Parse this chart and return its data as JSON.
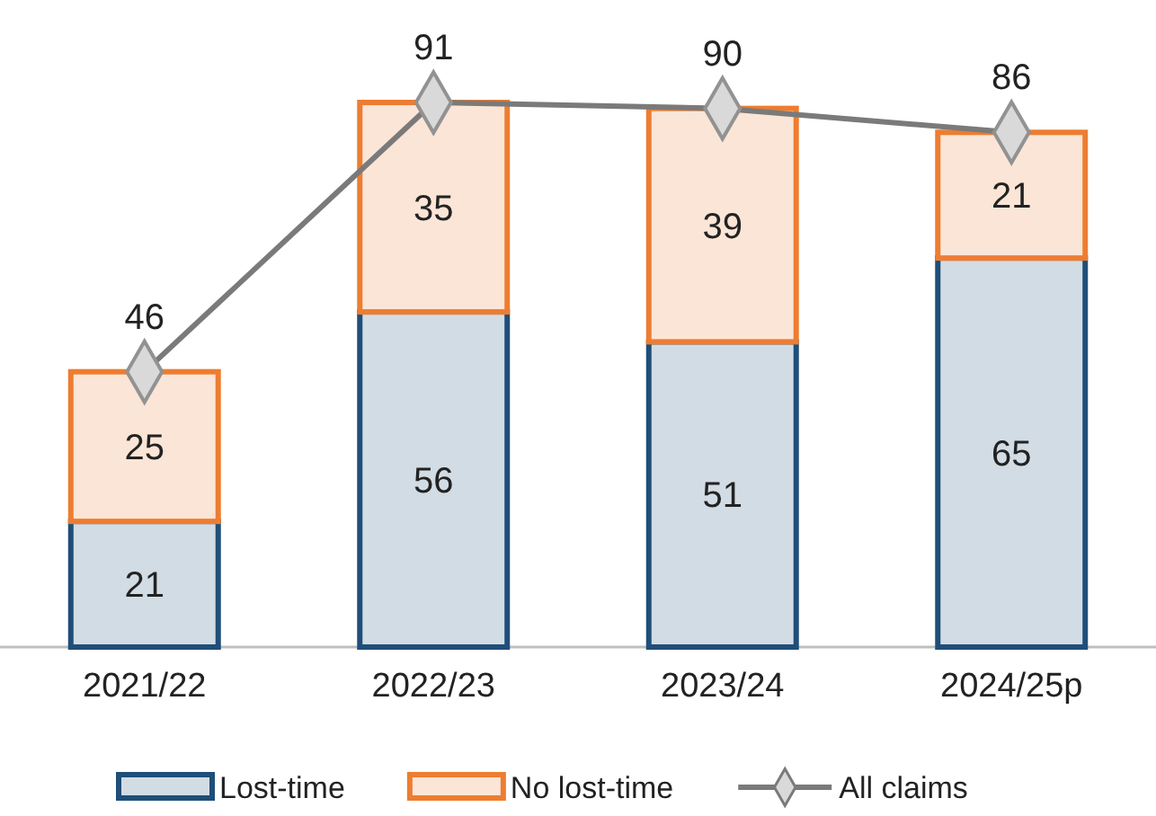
{
  "chart_data": {
    "type": "bar",
    "stacked": true,
    "categories": [
      "2021/22",
      "2022/23",
      "2023/24",
      "2024/25p"
    ],
    "series": [
      {
        "name": "Lost-time",
        "color": "#1f4e79",
        "values": [
          21,
          56,
          51,
          65
        ]
      },
      {
        "name": "No lost-time",
        "color": "#ed7d31",
        "values": [
          25,
          35,
          39,
          21
        ]
      },
      {
        "name": "All claims",
        "type": "line",
        "color": "#7a7a7a",
        "marker": "diamond",
        "values": [
          46,
          91,
          90,
          86
        ]
      }
    ],
    "tick_labels": "x",
    "data_labels": true,
    "legend": "bottom",
    "grid": false
  }
}
